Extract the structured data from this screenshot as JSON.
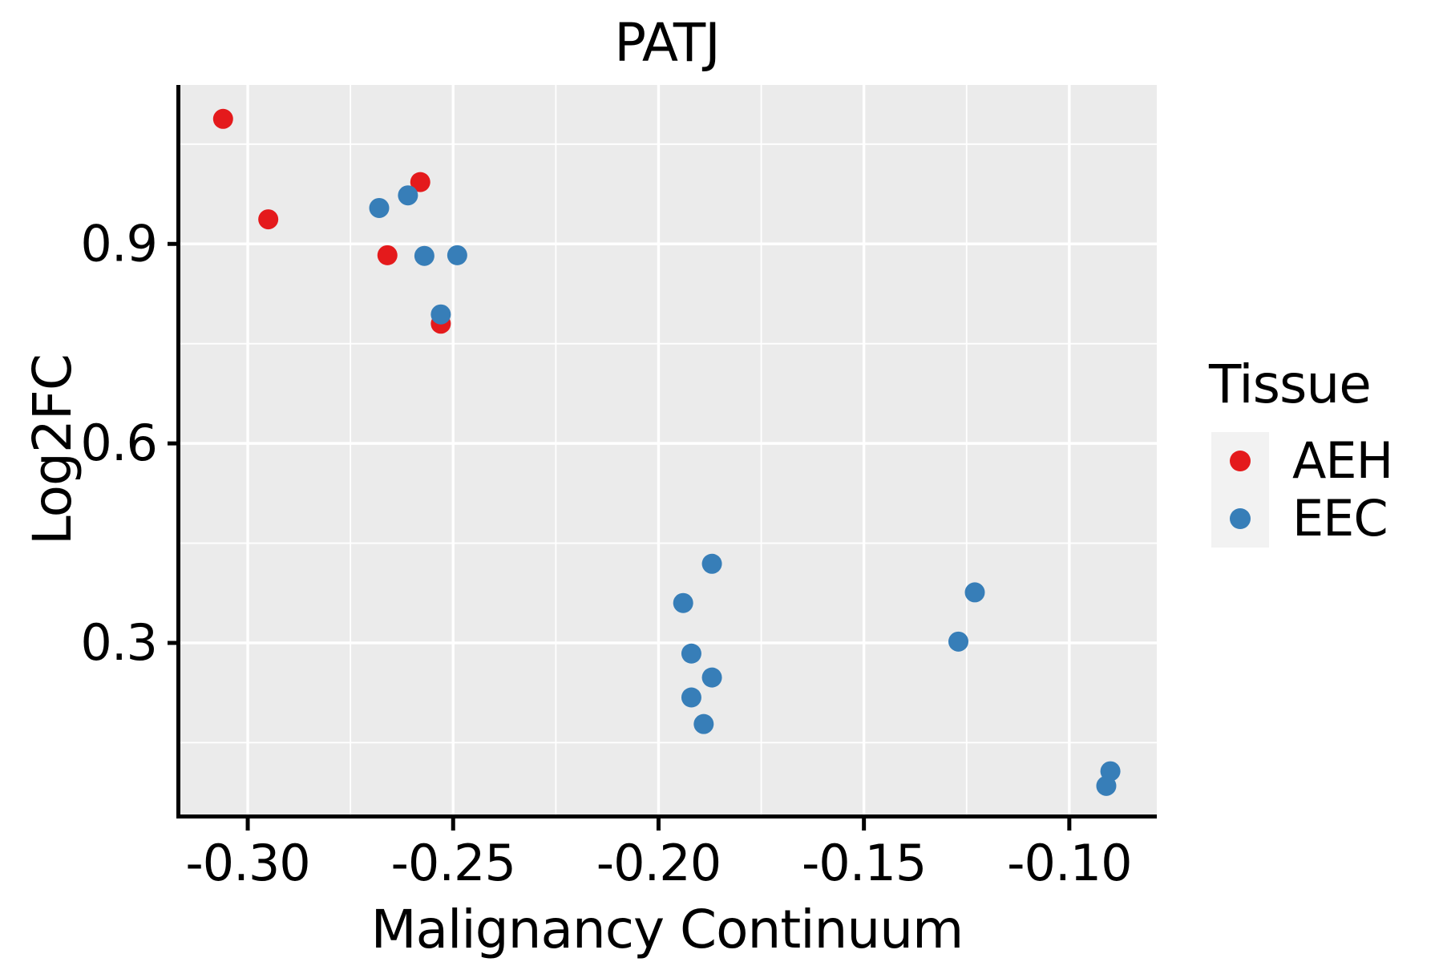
{
  "title": "PATJ",
  "colors": {
    "figure_bg": "#FFFFFF",
    "panel_bg": "#EBEBEB",
    "grid": "#FFFFFF",
    "axis": "#000000",
    "legend_key_bg": "#F2F2F2",
    "aeh": "#E41A1C",
    "eec": "#377EB8"
  },
  "legend": {
    "title": "Tissue"
  },
  "chart_data": {
    "type": "scatter",
    "title": "PATJ",
    "xlabel": "Malignancy Continuum",
    "ylabel": "Log2FC",
    "xlim": [
      -0.3164,
      -0.0787
    ],
    "ylim": [
      0.042,
      1.139
    ],
    "x_major_ticks": [
      -0.3,
      -0.25,
      -0.2,
      -0.15,
      -0.1
    ],
    "x_tick_labels": [
      "-0.30",
      "-0.25",
      "-0.20",
      "-0.15",
      "-0.10"
    ],
    "x_minor_ticks": [
      -0.275,
      -0.225,
      -0.175,
      -0.125
    ],
    "y_major_ticks": [
      0.9,
      0.6,
      0.3
    ],
    "y_tick_labels": [
      "0.9",
      "0.6",
      "0.3"
    ],
    "y_minor_ticks": [
      1.05,
      0.75,
      0.45,
      0.15
    ],
    "grid": true,
    "legend_position": "right",
    "point_radius_px": 12.5,
    "series": [
      {
        "name": "AEH",
        "color": "#E41A1C",
        "points": [
          [
            -0.306,
            1.088
          ],
          [
            -0.295,
            0.937
          ],
          [
            -0.258,
            0.993
          ],
          [
            -0.266,
            0.883
          ],
          [
            -0.253,
            0.78
          ]
        ]
      },
      {
        "name": "EEC",
        "color": "#377EB8",
        "points": [
          [
            -0.268,
            0.954
          ],
          [
            -0.261,
            0.973
          ],
          [
            -0.257,
            0.882
          ],
          [
            -0.249,
            0.883
          ],
          [
            -0.253,
            0.794
          ],
          [
            -0.187,
            0.419
          ],
          [
            -0.194,
            0.36
          ],
          [
            -0.192,
            0.284
          ],
          [
            -0.187,
            0.248
          ],
          [
            -0.192,
            0.218
          ],
          [
            -0.189,
            0.178
          ],
          [
            -0.123,
            0.376
          ],
          [
            -0.127,
            0.302
          ],
          [
            -0.09,
            0.107
          ],
          [
            -0.091,
            0.085
          ]
        ]
      }
    ]
  }
}
